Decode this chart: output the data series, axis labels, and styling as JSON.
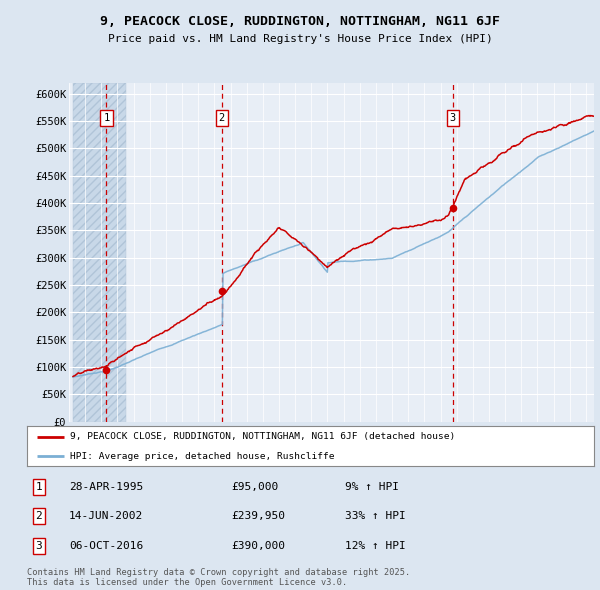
{
  "title": "9, PEACOCK CLOSE, RUDDINGTON, NOTTINGHAM, NG11 6JF",
  "subtitle": "Price paid vs. HM Land Registry's House Price Index (HPI)",
  "ylim": [
    0,
    620000
  ],
  "yticks": [
    0,
    50000,
    100000,
    150000,
    200000,
    250000,
    300000,
    350000,
    400000,
    450000,
    500000,
    550000,
    600000
  ],
  "xlim_start": 1993.25,
  "xlim_end": 2025.5,
  "background_color": "#dce6f1",
  "plot_bg_color": "#e8eef6",
  "hatch_area_end": 1996.0,
  "grid_color": "#ffffff",
  "sale_dates": [
    1995.32,
    2002.45,
    2016.76
  ],
  "sale_prices": [
    95000,
    239950,
    390000
  ],
  "sale_labels": [
    "1",
    "2",
    "3"
  ],
  "table_dates": [
    "28-APR-1995",
    "14-JUN-2002",
    "06-OCT-2016"
  ],
  "table_prices": [
    "£95,000",
    "£239,950",
    "£390,000"
  ],
  "table_hpi": [
    "9% ↑ HPI",
    "33% ↑ HPI",
    "12% ↑ HPI"
  ],
  "legend_line1": "9, PEACOCK CLOSE, RUDDINGTON, NOTTINGHAM, NG11 6JF (detached house)",
  "legend_line2": "HPI: Average price, detached house, Rushcliffe",
  "footer": "Contains HM Land Registry data © Crown copyright and database right 2025.\nThis data is licensed under the Open Government Licence v3.0.",
  "red_line_color": "#cc0000",
  "blue_line_color": "#7bafd4"
}
